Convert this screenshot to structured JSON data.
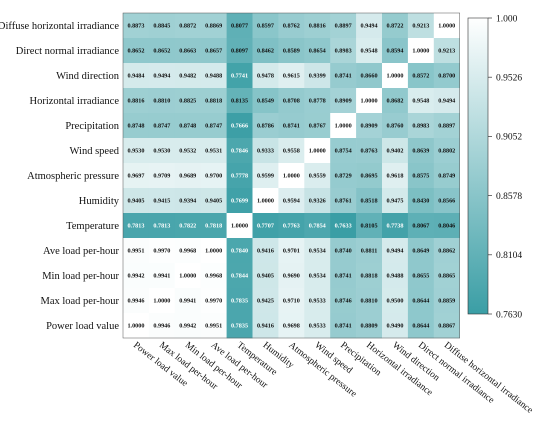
{
  "chart_data": {
    "type": "heatmap",
    "title": "",
    "row_labels": [
      "Diffuse horizontal irradiance",
      "Direct normal irradiance",
      "Wind direction",
      "Horizontal irradiance",
      "Precipitation",
      "Wind speed",
      "Atmospheric pressure",
      "Humidity",
      "Temperature",
      "Ave load per-hour",
      "Min load per-hour",
      "Max load per-hour",
      "Power load value"
    ],
    "col_labels": [
      "Power load value",
      "Max load per-hour",
      "Min load per-hour",
      "Ave load per-hour",
      "Temperature",
      "Humidity",
      "Atmospheric pressure",
      "Wind speed",
      "Precipitation",
      "Horizontal irradiance",
      "Wind direction",
      "Direct normal irradiance",
      "Diffuse horizontal irradiance"
    ],
    "values": [
      [
        "0.8873",
        "0.8845",
        "0.8872",
        "0.8869",
        "0.8077",
        "0.8597",
        "0.8762",
        "0.8816",
        "0.8897",
        "0.9494",
        "0.8722",
        "0.9213",
        "1.0000"
      ],
      [
        "0.8652",
        "0.8652",
        "0.8663",
        "0.8657",
        "0.8097",
        "0.8462",
        "0.8589",
        "0.8654",
        "0.8983",
        "0.9548",
        "0.8594",
        "1.0000",
        "0.9213"
      ],
      [
        "0.9484",
        "0.9494",
        "0.9482",
        "0.9488",
        "0.7741",
        "0.9478",
        "0.9615",
        "0.9399",
        "0.8741",
        "0.8660",
        "1.0000",
        "0.8572",
        "0.8700"
      ],
      [
        "0.8816",
        "0.8810",
        "0.8825",
        "0.8818",
        "0.8135",
        "0.8549",
        "0.8708",
        "0.8778",
        "0.8909",
        "1.0000",
        "0.8682",
        "0.9548",
        "0.9494"
      ],
      [
        "0.8748",
        "0.8747",
        "0.8748",
        "0.8747",
        "0.7666",
        "0.8786",
        "0.8741",
        "0.8767",
        "1.0000",
        "0.8909",
        "0.8760",
        "0.8983",
        "0.8897"
      ],
      [
        "0.9530",
        "0.9530",
        "0.9532",
        "0.9531",
        "0.7846",
        "0.9333",
        "0.9558",
        "1.0000",
        "0.8754",
        "0.8763",
        "0.9402",
        "0.8639",
        "0.8802"
      ],
      [
        "0.9697",
        "0.9709",
        "0.9689",
        "0.9700",
        "0.7778",
        "0.9599",
        "1.0000",
        "0.9559",
        "0.8729",
        "0.8695",
        "0.9618",
        "0.8575",
        "0.8749"
      ],
      [
        "0.9405",
        "0.9415",
        "0.9394",
        "0.9405",
        "0.7699",
        "1.0000",
        "0.9594",
        "0.9326",
        "0.8761",
        "0.8518",
        "0.9475",
        "0.8430",
        "0.8566"
      ],
      [
        "0.7813",
        "0.7813",
        "0.7822",
        "0.7818",
        "1.0000",
        "0.7707",
        "0.7763",
        "0.7854",
        "0.7633",
        "0.8105",
        "0.7738",
        "0.8067",
        "0.8046"
      ],
      [
        "0.9951",
        "0.9970",
        "0.9968",
        "1.0000",
        "0.7840",
        "0.9416",
        "0.9701",
        "0.9534",
        "0.8740",
        "0.8811",
        "0.9494",
        "0.8649",
        "0.8862"
      ],
      [
        "0.9942",
        "0.9941",
        "1.0000",
        "0.9968",
        "0.7844",
        "0.9405",
        "0.9690",
        "0.9534",
        "0.8741",
        "0.8818",
        "0.9488",
        "0.8655",
        "0.8865"
      ],
      [
        "0.9946",
        "1.0000",
        "0.9941",
        "0.9970",
        "0.7835",
        "0.9425",
        "0.9710",
        "0.9533",
        "0.8746",
        "0.8810",
        "0.9500",
        "0.8644",
        "0.8859"
      ],
      [
        "1.0000",
        "0.9946",
        "0.9942",
        "0.9951",
        "0.7835",
        "0.9416",
        "0.9698",
        "0.9533",
        "0.8741",
        "0.8809",
        "0.9490",
        "0.8644",
        "0.8867"
      ]
    ],
    "colorbar": {
      "ticks": [
        "1.000",
        "0.9526",
        "0.9052",
        "0.8578",
        "0.8104",
        "0.7630"
      ],
      "min": 0.763,
      "max": 1.0,
      "color_low": "#3a9ea5",
      "color_high": "#ffffff"
    },
    "legend": "right"
  }
}
